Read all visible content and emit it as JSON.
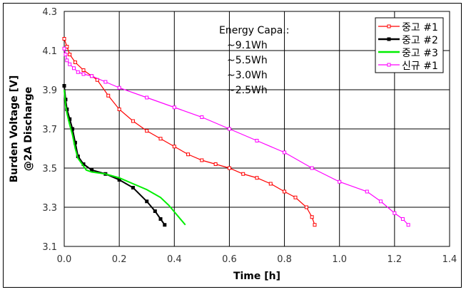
{
  "chart_data": {
    "type": "line",
    "title": "",
    "xlabel": "Time [h]",
    "ylabel": [
      "Burden Voltage [V]",
      "@2A Discharge"
    ],
    "xlim": [
      0,
      1.4
    ],
    "ylim": [
      3.1,
      4.3
    ],
    "xticks": [
      "0.0",
      "0.2",
      "0.4",
      "0.6",
      "0.8",
      "1.0",
      "1.2",
      "1.4"
    ],
    "yticks": [
      "3.1",
      "3.3",
      "3.5",
      "3.7",
      "3.9",
      "4.1",
      "4.3"
    ],
    "grid": true,
    "legend_position": "top-right",
    "annotation": [
      "Energy Capa.:",
      "~9.1Wh",
      "~5.5Wh",
      "~3.0Wh",
      "~2.5Wh"
    ],
    "series": [
      {
        "name": "중고 #1",
        "color": "#ff0000",
        "marker": "square",
        "x": [
          0,
          0.01,
          0.02,
          0.04,
          0.07,
          0.1,
          0.12,
          0.16,
          0.2,
          0.25,
          0.3,
          0.35,
          0.4,
          0.45,
          0.5,
          0.55,
          0.6,
          0.65,
          0.7,
          0.75,
          0.8,
          0.84,
          0.88,
          0.9,
          0.91
        ],
        "y": [
          4.16,
          4.12,
          4.08,
          4.04,
          4.0,
          3.97,
          3.95,
          3.87,
          3.8,
          3.74,
          3.69,
          3.65,
          3.61,
          3.57,
          3.54,
          3.52,
          3.5,
          3.47,
          3.45,
          3.42,
          3.38,
          3.35,
          3.3,
          3.25,
          3.21
        ]
      },
      {
        "name": "중고 #2",
        "color": "#000000",
        "marker": "square",
        "x": [
          0,
          0.005,
          0.01,
          0.02,
          0.03,
          0.04,
          0.05,
          0.07,
          0.1,
          0.15,
          0.2,
          0.25,
          0.3,
          0.33,
          0.35,
          0.365
        ],
        "y": [
          3.92,
          3.85,
          3.8,
          3.75,
          3.7,
          3.63,
          3.56,
          3.52,
          3.49,
          3.47,
          3.44,
          3.4,
          3.33,
          3.28,
          3.24,
          3.21
        ]
      },
      {
        "name": "중고 #3",
        "color": "#00ee00",
        "marker": "none",
        "x": [
          0,
          0.005,
          0.01,
          0.02,
          0.03,
          0.04,
          0.05,
          0.08,
          0.1,
          0.15,
          0.2,
          0.25,
          0.3,
          0.35,
          0.38,
          0.41,
          0.44
        ],
        "y": [
          3.9,
          3.82,
          3.78,
          3.72,
          3.67,
          3.6,
          3.55,
          3.49,
          3.48,
          3.47,
          3.45,
          3.42,
          3.39,
          3.35,
          3.31,
          3.26,
          3.21
        ]
      },
      {
        "name": "신규 #1",
        "color": "#ff00ff",
        "marker": "square",
        "x": [
          0,
          0.005,
          0.01,
          0.02,
          0.035,
          0.05,
          0.07,
          0.1,
          0.15,
          0.2,
          0.3,
          0.4,
          0.5,
          0.6,
          0.7,
          0.8,
          0.9,
          1.0,
          1.1,
          1.15,
          1.2,
          1.23,
          1.25
        ],
        "y": [
          4.11,
          4.08,
          4.05,
          4.03,
          4.01,
          3.99,
          3.98,
          3.97,
          3.94,
          3.91,
          3.86,
          3.81,
          3.76,
          3.7,
          3.64,
          3.58,
          3.5,
          3.43,
          3.38,
          3.33,
          3.27,
          3.24,
          3.21
        ]
      }
    ]
  }
}
